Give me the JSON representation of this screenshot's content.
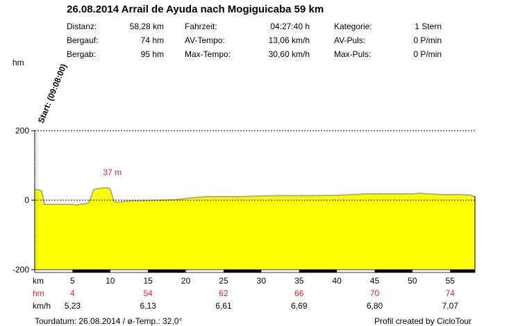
{
  "header": {
    "title": "26.08.2014 Arrail de Ayuda nach Mogiguicaba 59 km",
    "stats": [
      {
        "label": "Distanz:",
        "value": "58,28 km"
      },
      {
        "label": "Bergauf:",
        "value": "74 hm"
      },
      {
        "label": "Bergab:",
        "value": "95 hm"
      },
      {
        "label": "Fahrzeit:",
        "value": "04:27:40 h"
      },
      {
        "label": "AV-Tempo:",
        "value": "13,06 km/h"
      },
      {
        "label": "Max-Tempo:",
        "value": "30,60 km/h"
      },
      {
        "label": "Kategorie:",
        "value": "1 Stern"
      },
      {
        "label": "AV-Puls:",
        "value": "0 P/min"
      },
      {
        "label": "Max-Puls:",
        "value": "0 P/min"
      }
    ]
  },
  "footer": {
    "left": "Tourdatum: 26.08.2014  /  ø-Temp.: 32,0°",
    "right": "Profil created by CicloTour"
  },
  "chart_data": {
    "type": "area",
    "ylabel": "hm",
    "start_label": "Start: (09:08:00)",
    "peak_label": "37 m",
    "y_ticks": [
      200,
      0,
      -200
    ],
    "ylim": [
      -200,
      200
    ],
    "xlim": [
      0,
      58.28
    ],
    "x_ticks": [
      5,
      10,
      15,
      20,
      25,
      30,
      35,
      40,
      45,
      50,
      55
    ],
    "x_unit_label": "km",
    "hm_row_label": "hm",
    "hm_row": [
      {
        "km": 5,
        "value": "4"
      },
      {
        "km": 15,
        "value": "54"
      },
      {
        "km": 25,
        "value": "62"
      },
      {
        "km": 35,
        "value": "66"
      },
      {
        "km": 45,
        "value": "70"
      },
      {
        "km": 55,
        "value": "74"
      }
    ],
    "speed_row_label": "km/h",
    "speed_row": [
      {
        "km": 5,
        "value": "5,23"
      },
      {
        "km": 15,
        "value": "6,13"
      },
      {
        "km": 25,
        "value": "6,61"
      },
      {
        "km": 35,
        "value": "6,69"
      },
      {
        "km": 45,
        "value": "6,80"
      },
      {
        "km": 55,
        "value": "7,07"
      }
    ],
    "series": [
      {
        "x": [
          0,
          0.5,
          0.9,
          1.3,
          2,
          3,
          4,
          5,
          5.5,
          6,
          6.8,
          7.2,
          7.8,
          8.5,
          9.2,
          9.6,
          10,
          10.5,
          11,
          12,
          13,
          15,
          17,
          19,
          20,
          21,
          22,
          23,
          25,
          27,
          30,
          32,
          35,
          37,
          40,
          42,
          44,
          46,
          48,
          50,
          51,
          52,
          54,
          56,
          57.5,
          58,
          58.28
        ],
        "y": [
          30,
          30,
          26,
          -12,
          -12,
          -12,
          -12,
          -12,
          -14,
          -12,
          -10,
          -6,
          30,
          34,
          35,
          36,
          32,
          -4,
          -6,
          -3,
          -2,
          -1,
          0,
          2,
          5,
          7,
          9,
          10,
          10,
          10,
          12,
          13,
          13,
          13,
          14,
          16,
          18,
          18,
          18,
          18,
          20,
          18,
          16,
          16,
          15,
          12,
          10
        ]
      }
    ],
    "fill_color": "#ffff00",
    "line_color": "#aaaaaa",
    "label_color": "#ee2222",
    "zero_line": "dotted",
    "top_line": "dotted"
  }
}
